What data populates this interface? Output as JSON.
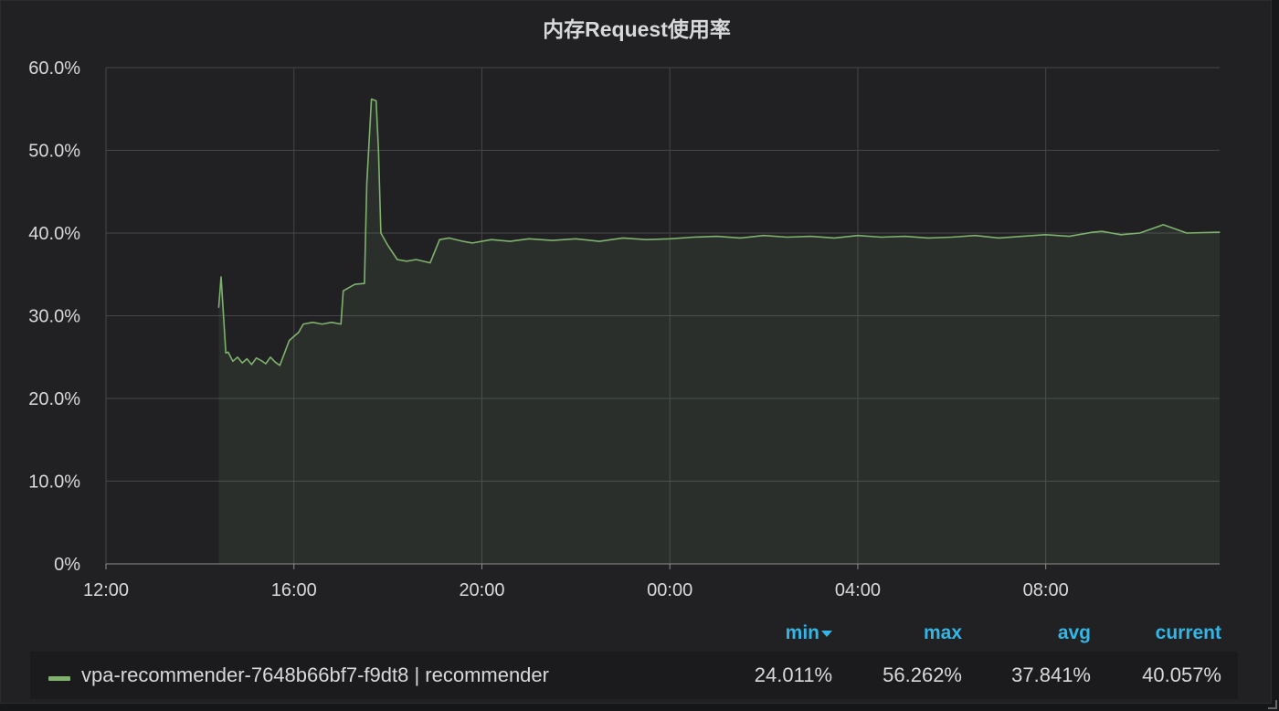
{
  "panel": {
    "title": "内存Request使用率"
  },
  "chart_data": {
    "type": "area",
    "title": "内存Request使用率",
    "xlabel": "",
    "ylabel": "",
    "ylim": [
      0,
      60
    ],
    "y_unit": "%",
    "y_ticks": [
      "0%",
      "10.0%",
      "20.0%",
      "30.0%",
      "40.0%",
      "50.0%",
      "60.0%"
    ],
    "x_ticks": [
      "12:00",
      "16:00",
      "20:00",
      "00:00",
      "04:00",
      "08:00"
    ],
    "x_range_hours": [
      12.0,
      35.7
    ],
    "grid": true,
    "legend_position": "bottom",
    "series": [
      {
        "name": "vpa-recommender-7648b66bf7-f9dt8 | recommender",
        "color": "#7eb26d",
        "x": [
          14.4,
          14.45,
          14.55,
          14.6,
          14.7,
          14.8,
          14.9,
          15.0,
          15.1,
          15.2,
          15.3,
          15.4,
          15.5,
          15.6,
          15.7,
          15.8,
          15.9,
          16.0,
          16.1,
          16.2,
          16.4,
          16.6,
          16.8,
          17.0,
          17.05,
          17.2,
          17.3,
          17.5,
          17.55,
          17.65,
          17.75,
          17.8,
          17.85,
          18.0,
          18.2,
          18.4,
          18.6,
          18.9,
          19.0,
          19.1,
          19.3,
          19.6,
          19.8,
          20.2,
          20.6,
          21.0,
          21.5,
          22.0,
          22.5,
          23.0,
          23.5,
          24.0,
          24.5,
          25.0,
          25.5,
          26.0,
          26.5,
          27.0,
          27.5,
          28.0,
          28.5,
          29.0,
          29.5,
          30.0,
          30.5,
          31.0,
          31.5,
          32.0,
          32.5,
          33.0,
          33.2,
          33.4,
          33.6,
          34.0,
          34.5,
          35.0,
          35.7
        ],
        "values": [
          31.0,
          34.7,
          25.5,
          25.6,
          24.5,
          25.0,
          24.3,
          24.8,
          24.1,
          24.9,
          24.6,
          24.2,
          25.0,
          24.4,
          24.0,
          25.5,
          27.0,
          27.5,
          28.0,
          29.0,
          29.2,
          29.0,
          29.2,
          29.0,
          33.0,
          33.5,
          33.8,
          33.9,
          46.0,
          56.2,
          56.0,
          50.0,
          40.0,
          38.5,
          36.8,
          36.6,
          36.8,
          36.4,
          37.8,
          39.2,
          39.4,
          39.0,
          38.8,
          39.2,
          39.0,
          39.3,
          39.1,
          39.3,
          39.0,
          39.4,
          39.2,
          39.3,
          39.5,
          39.6,
          39.4,
          39.7,
          39.5,
          39.6,
          39.4,
          39.7,
          39.5,
          39.6,
          39.4,
          39.5,
          39.7,
          39.4,
          39.6,
          39.8,
          39.6,
          40.1,
          40.2,
          40.0,
          39.8,
          40.0,
          41.0,
          40.0,
          40.1
        ]
      }
    ]
  },
  "legend": {
    "columns": {
      "min": "min",
      "max": "max",
      "avg": "avg",
      "current": "current"
    },
    "sorted_by": "min",
    "rows": [
      {
        "name": "vpa-recommender-7648b66bf7-f9dt8 | recommender",
        "min": "24.011%",
        "max": "56.262%",
        "avg": "37.841%",
        "current": "40.057%"
      }
    ]
  }
}
